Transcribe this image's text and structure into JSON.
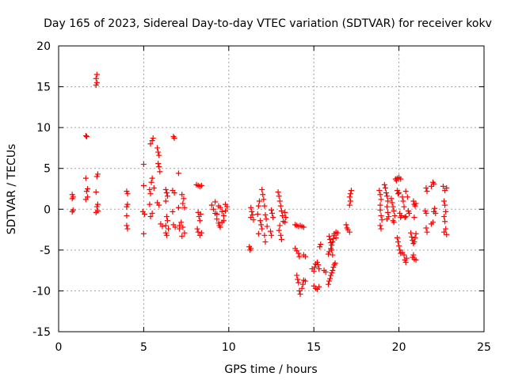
{
  "chart_data": {
    "type": "scatter",
    "title": "Day 165 of 2023, Sidereal Day-to-day VTEC variation (SDTVAR) for receiver kokv",
    "xlabel": "GPS time / hours",
    "ylabel": "SDTVAR / TECUs",
    "xlim": [
      0,
      25
    ],
    "ylim": [
      -15,
      20
    ],
    "xticks": [
      0,
      5,
      10,
      15,
      20,
      25
    ],
    "yticks": [
      -15,
      -10,
      -5,
      0,
      5,
      10,
      15,
      20
    ],
    "grid": true,
    "marker": "plus",
    "color": "#ff0000",
    "series": [
      {
        "name": "SDTVAR",
        "points": [
          [
            0.8,
            1.8
          ],
          [
            0.8,
            1.3
          ],
          [
            0.85,
            -0.1
          ],
          [
            0.8,
            -0.3
          ],
          [
            0.85,
            1.5
          ],
          [
            1.6,
            9.0
          ],
          [
            1.65,
            8.9
          ],
          [
            1.6,
            3.8
          ],
          [
            1.7,
            2.5
          ],
          [
            1.65,
            2.2
          ],
          [
            1.7,
            1.5
          ],
          [
            1.6,
            1.2
          ],
          [
            2.25,
            16.5
          ],
          [
            2.2,
            16.0
          ],
          [
            2.25,
            15.5
          ],
          [
            2.2,
            15.2
          ],
          [
            2.3,
            4.3
          ],
          [
            2.25,
            4.0
          ],
          [
            2.2,
            2.1
          ],
          [
            2.3,
            0.6
          ],
          [
            2.25,
            0.3
          ],
          [
            2.3,
            -0.2
          ],
          [
            2.2,
            -0.4
          ],
          [
            4.0,
            2.2
          ],
          [
            4.05,
            1.9
          ],
          [
            4.05,
            0.6
          ],
          [
            4.0,
            0.3
          ],
          [
            4.0,
            -0.8
          ],
          [
            4.0,
            -2.0
          ],
          [
            4.05,
            -2.4
          ],
          [
            5.0,
            5.5
          ],
          [
            5.0,
            2.9
          ],
          [
            4.95,
            -0.3
          ],
          [
            5.05,
            -0.6
          ],
          [
            5.0,
            -3.0
          ],
          [
            5.4,
            8.0
          ],
          [
            5.5,
            8.4
          ],
          [
            5.55,
            8.7
          ],
          [
            5.35,
            2.4
          ],
          [
            5.4,
            1.9
          ],
          [
            5.45,
            3.3
          ],
          [
            5.5,
            3.8
          ],
          [
            5.6,
            2.6
          ],
          [
            5.35,
            0.6
          ],
          [
            5.4,
            -0.9
          ],
          [
            5.5,
            -0.5
          ],
          [
            5.8,
            7.5
          ],
          [
            5.85,
            7.0
          ],
          [
            5.9,
            6.6
          ],
          [
            5.85,
            5.6
          ],
          [
            5.9,
            5.2
          ],
          [
            5.95,
            4.6
          ],
          [
            5.8,
            0.8
          ],
          [
            5.9,
            0.5
          ],
          [
            6.0,
            -1.8
          ],
          [
            6.1,
            -2.1
          ],
          [
            6.3,
            2.4
          ],
          [
            6.35,
            2.0
          ],
          [
            6.4,
            1.6
          ],
          [
            6.3,
            1.0
          ],
          [
            6.35,
            -0.9
          ],
          [
            6.4,
            -1.4
          ],
          [
            6.3,
            -2.0
          ],
          [
            6.45,
            -2.4
          ],
          [
            6.3,
            -2.9
          ],
          [
            6.35,
            -3.2
          ],
          [
            6.75,
            8.9
          ],
          [
            6.8,
            8.7
          ],
          [
            6.7,
            2.3
          ],
          [
            6.8,
            2.0
          ],
          [
            6.75,
            -1.9
          ],
          [
            6.85,
            -2.2
          ],
          [
            6.7,
            -0.3
          ],
          [
            7.05,
            4.4
          ],
          [
            7.1,
            -2.0
          ],
          [
            7.1,
            -2.4
          ],
          [
            7.05,
            0.2
          ],
          [
            7.25,
            1.8
          ],
          [
            7.35,
            1.3
          ],
          [
            7.3,
            0.7
          ],
          [
            7.4,
            0.2
          ],
          [
            7.2,
            -1.6
          ],
          [
            7.3,
            -2.2
          ],
          [
            7.4,
            -2.9
          ],
          [
            7.25,
            -3.3
          ],
          [
            8.1,
            3.0
          ],
          [
            8.2,
            2.9
          ],
          [
            8.3,
            2.8
          ],
          [
            8.4,
            2.9
          ],
          [
            8.2,
            -0.4
          ],
          [
            8.25,
            -0.9
          ],
          [
            8.3,
            -1.4
          ],
          [
            8.35,
            -0.6
          ],
          [
            8.15,
            -2.4
          ],
          [
            8.2,
            -2.8
          ],
          [
            8.3,
            -3.2
          ],
          [
            8.4,
            -2.9
          ],
          [
            9.0,
            0.5
          ],
          [
            9.1,
            0.0
          ],
          [
            9.2,
            -0.5
          ],
          [
            9.3,
            -1.2
          ],
          [
            9.4,
            -1.7
          ],
          [
            9.5,
            -2.2
          ],
          [
            9.6,
            -1.6
          ],
          [
            9.7,
            -0.8
          ],
          [
            9.8,
            -0.2
          ],
          [
            9.9,
            0.3
          ],
          [
            9.2,
            0.9
          ],
          [
            9.4,
            0.4
          ],
          [
            9.6,
            -0.3
          ],
          [
            9.8,
            0.6
          ],
          [
            9.5,
            0.2
          ],
          [
            9.3,
            -0.6
          ],
          [
            9.7,
            -1.4
          ],
          [
            9.45,
            -2.0
          ],
          [
            11.2,
            -4.6
          ],
          [
            11.25,
            -5.0
          ],
          [
            11.3,
            -4.8
          ],
          [
            11.3,
            0.2
          ],
          [
            11.35,
            -0.3
          ],
          [
            11.4,
            -0.7
          ],
          [
            11.3,
            -1.0
          ],
          [
            11.45,
            -1.3
          ],
          [
            11.7,
            -0.6
          ],
          [
            11.75,
            0.4
          ],
          [
            11.8,
            1.0
          ],
          [
            11.85,
            -1.4
          ],
          [
            11.9,
            -1.9
          ],
          [
            11.95,
            -2.4
          ],
          [
            11.75,
            -3.0
          ],
          [
            11.95,
            2.4
          ],
          [
            12.0,
            1.8
          ],
          [
            12.05,
            1.2
          ],
          [
            12.1,
            0.4
          ],
          [
            12.15,
            -0.7
          ],
          [
            12.2,
            -1.2
          ],
          [
            12.25,
            -2.1
          ],
          [
            12.1,
            -3.2
          ],
          [
            12.15,
            -4.0
          ],
          [
            12.5,
            -0.1
          ],
          [
            12.55,
            -0.5
          ],
          [
            12.6,
            -1.0
          ],
          [
            12.45,
            -2.7
          ],
          [
            12.5,
            -3.2
          ],
          [
            12.9,
            2.1
          ],
          [
            12.95,
            1.6
          ],
          [
            13.0,
            1.0
          ],
          [
            13.05,
            0.4
          ],
          [
            13.1,
            -0.2
          ],
          [
            13.15,
            -0.8
          ],
          [
            13.2,
            -1.5
          ],
          [
            13.0,
            -2.0
          ],
          [
            12.95,
            -2.6
          ],
          [
            13.05,
            -3.2
          ],
          [
            13.1,
            -3.7
          ],
          [
            13.3,
            -0.4
          ],
          [
            13.35,
            -1.0
          ],
          [
            13.3,
            -1.6
          ],
          [
            13.9,
            -1.9
          ],
          [
            14.0,
            -2.0
          ],
          [
            14.1,
            -2.1
          ],
          [
            14.2,
            -2.0
          ],
          [
            14.3,
            -2.1
          ],
          [
            14.4,
            -2.2
          ],
          [
            13.9,
            -4.8
          ],
          [
            14.0,
            -5.1
          ],
          [
            14.1,
            -5.4
          ],
          [
            14.15,
            -5.8
          ],
          [
            14.0,
            -8.1
          ],
          [
            14.05,
            -8.6
          ],
          [
            14.1,
            -9.0
          ],
          [
            14.15,
            -10.0
          ],
          [
            14.2,
            -10.4
          ],
          [
            14.3,
            -9.7
          ],
          [
            14.35,
            -9.2
          ],
          [
            14.4,
            -8.7
          ],
          [
            14.5,
            -8.8
          ],
          [
            14.4,
            -5.6
          ],
          [
            14.5,
            -5.8
          ],
          [
            14.9,
            -7.3
          ],
          [
            15.0,
            -7.6
          ],
          [
            15.05,
            -7.1
          ],
          [
            15.1,
            -6.7
          ],
          [
            15.2,
            -6.5
          ],
          [
            15.25,
            -6.8
          ],
          [
            15.3,
            -7.3
          ],
          [
            15.0,
            -9.4
          ],
          [
            15.1,
            -9.7
          ],
          [
            15.2,
            -9.8
          ],
          [
            15.3,
            -9.5
          ],
          [
            15.35,
            -4.6
          ],
          [
            15.4,
            -4.3
          ],
          [
            15.6,
            -7.5
          ],
          [
            15.7,
            -7.7
          ],
          [
            15.85,
            -5.5
          ],
          [
            15.9,
            -5.2
          ],
          [
            16.0,
            -4.8
          ],
          [
            16.05,
            -4.4
          ],
          [
            16.1,
            -4.0
          ],
          [
            16.15,
            -3.6
          ],
          [
            16.2,
            -3.2
          ],
          [
            16.3,
            -2.8
          ],
          [
            15.9,
            -3.3
          ],
          [
            15.95,
            -3.7
          ],
          [
            16.0,
            -4.1
          ],
          [
            16.05,
            -5.0
          ],
          [
            16.1,
            -5.6
          ],
          [
            15.85,
            -9.2
          ],
          [
            15.9,
            -8.8
          ],
          [
            15.95,
            -8.5
          ],
          [
            16.0,
            -8.1
          ],
          [
            16.05,
            -7.8
          ],
          [
            16.1,
            -7.5
          ],
          [
            16.15,
            -7.1
          ],
          [
            16.2,
            -6.8
          ],
          [
            16.25,
            -6.6
          ],
          [
            16.2,
            -3.0
          ],
          [
            16.3,
            -3.5
          ],
          [
            16.4,
            -2.9
          ],
          [
            17.1,
            1.5
          ],
          [
            17.15,
            1.9
          ],
          [
            17.2,
            2.3
          ],
          [
            17.15,
            1.0
          ],
          [
            17.1,
            0.5
          ],
          [
            16.9,
            -1.9
          ],
          [
            16.95,
            -2.3
          ],
          [
            17.0,
            -2.5
          ],
          [
            17.1,
            -2.8
          ],
          [
            18.85,
            2.3
          ],
          [
            18.9,
            1.8
          ],
          [
            18.95,
            1.2
          ],
          [
            18.9,
            0.5
          ],
          [
            18.9,
            -0.1
          ],
          [
            18.95,
            -0.8
          ],
          [
            19.0,
            -1.3
          ],
          [
            18.9,
            -2.0
          ],
          [
            18.95,
            -2.4
          ],
          [
            19.15,
            3.0
          ],
          [
            19.2,
            2.6
          ],
          [
            19.25,
            2.0
          ],
          [
            19.3,
            1.6
          ],
          [
            19.35,
            1.0
          ],
          [
            19.3,
            0.3
          ],
          [
            19.35,
            -0.4
          ],
          [
            19.4,
            -0.9
          ],
          [
            19.3,
            -1.2
          ],
          [
            19.55,
            1.3
          ],
          [
            19.6,
            0.8
          ],
          [
            19.65,
            0.3
          ],
          [
            19.7,
            -0.2
          ],
          [
            19.75,
            -0.8
          ],
          [
            19.65,
            -1.4
          ],
          [
            19.7,
            -1.6
          ],
          [
            19.8,
            3.7
          ],
          [
            19.9,
            3.8
          ],
          [
            20.0,
            3.9
          ],
          [
            20.1,
            3.7
          ],
          [
            19.85,
            3.5
          ],
          [
            19.9,
            2.3
          ],
          [
            19.95,
            1.9
          ],
          [
            20.0,
            2.0
          ],
          [
            20.05,
            -0.5
          ],
          [
            20.1,
            -1.0
          ],
          [
            20.15,
            -0.8
          ],
          [
            19.9,
            -3.5
          ],
          [
            19.95,
            -4.0
          ],
          [
            20.0,
            -4.5
          ],
          [
            20.05,
            -5.0
          ],
          [
            20.1,
            -5.4
          ],
          [
            20.2,
            -5.3
          ],
          [
            20.2,
            1.5
          ],
          [
            20.25,
            1.0
          ],
          [
            20.3,
            0.3
          ],
          [
            20.35,
            -1.0
          ],
          [
            20.4,
            -0.9
          ],
          [
            20.3,
            -5.6
          ],
          [
            20.35,
            -6.2
          ],
          [
            20.4,
            -6.5
          ],
          [
            20.45,
            -6.0
          ],
          [
            20.4,
            2.2
          ],
          [
            20.5,
            1.5
          ],
          [
            20.55,
            -0.2
          ],
          [
            20.6,
            -0.5
          ],
          [
            20.7,
            -2.9
          ],
          [
            20.75,
            -3.4
          ],
          [
            20.8,
            -3.8
          ],
          [
            20.85,
            -4.2
          ],
          [
            20.9,
            -4.0
          ],
          [
            20.95,
            -3.5
          ],
          [
            21.0,
            -3.0
          ],
          [
            20.8,
            -5.9
          ],
          [
            20.9,
            -6.1
          ],
          [
            21.0,
            -6.2
          ],
          [
            20.85,
            -5.6
          ],
          [
            20.85,
            1.0
          ],
          [
            20.9,
            0.6
          ],
          [
            20.95,
            0.4
          ],
          [
            21.0,
            0.7
          ],
          [
            20.9,
            -1.0
          ],
          [
            21.6,
            2.6
          ],
          [
            21.65,
            2.2
          ],
          [
            21.55,
            -0.2
          ],
          [
            21.6,
            -0.5
          ],
          [
            21.6,
            -2.3
          ],
          [
            21.65,
            -2.8
          ],
          [
            21.9,
            2.8
          ],
          [
            22.0,
            3.3
          ],
          [
            22.05,
            3.1
          ],
          [
            21.9,
            -1.8
          ],
          [
            22.0,
            -1.6
          ],
          [
            22.05,
            -0.3
          ],
          [
            22.1,
            0.1
          ],
          [
            22.15,
            -0.5
          ],
          [
            22.6,
            2.8
          ],
          [
            22.7,
            2.3
          ],
          [
            22.8,
            2.6
          ],
          [
            22.65,
            1.0
          ],
          [
            22.7,
            0.5
          ],
          [
            22.75,
            -0.3
          ],
          [
            22.65,
            -0.9
          ],
          [
            22.7,
            -1.5
          ],
          [
            22.75,
            -2.4
          ],
          [
            22.65,
            -2.8
          ],
          [
            22.8,
            -3.1
          ]
        ]
      }
    ]
  }
}
